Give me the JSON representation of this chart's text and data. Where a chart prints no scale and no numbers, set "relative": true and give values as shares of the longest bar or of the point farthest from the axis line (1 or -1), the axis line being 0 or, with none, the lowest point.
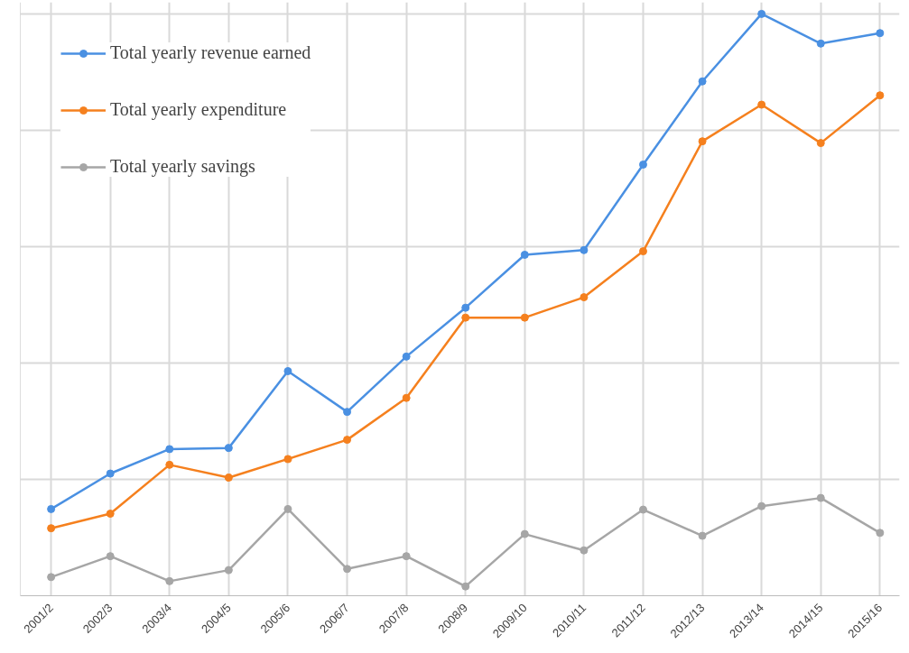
{
  "chart_data": {
    "type": "line",
    "relative": true,
    "categories": [
      "2001/2",
      "2002/3",
      "2003/4",
      "2004/5",
      "2005/6",
      "2006/7",
      "2007/8",
      "2008/9",
      "2009/10",
      "2010/11",
      "2011/12",
      "2012/13",
      "2013/14",
      "2014/15",
      "2015/16"
    ],
    "series": [
      {
        "name": "Total yearly revenue earned",
        "color": "#4a90e2",
        "values": [
          0.149,
          0.21,
          0.252,
          0.254,
          0.386,
          0.316,
          0.411,
          0.495,
          0.586,
          0.594,
          0.741,
          0.884,
          1,
          0.949,
          0.967
        ]
      },
      {
        "name": "Total yearly expenditure",
        "color": "#f5801e",
        "values": [
          0.116,
          0.141,
          0.225,
          0.203,
          0.235,
          0.268,
          0.34,
          0.478,
          0.478,
          0.513,
          0.592,
          0.781,
          0.844,
          0.778,
          0.86
        ]
      },
      {
        "name": "Total yearly savings",
        "color": "#a6a6a6",
        "values": [
          0.032,
          0.068,
          0.025,
          0.044,
          0.149,
          0.046,
          0.068,
          0.016,
          0.106,
          0.078,
          0.148,
          0.103,
          0.154,
          0.168,
          0.108
        ]
      }
    ],
    "marker": "circle",
    "grid": true,
    "legend": "top left"
  }
}
